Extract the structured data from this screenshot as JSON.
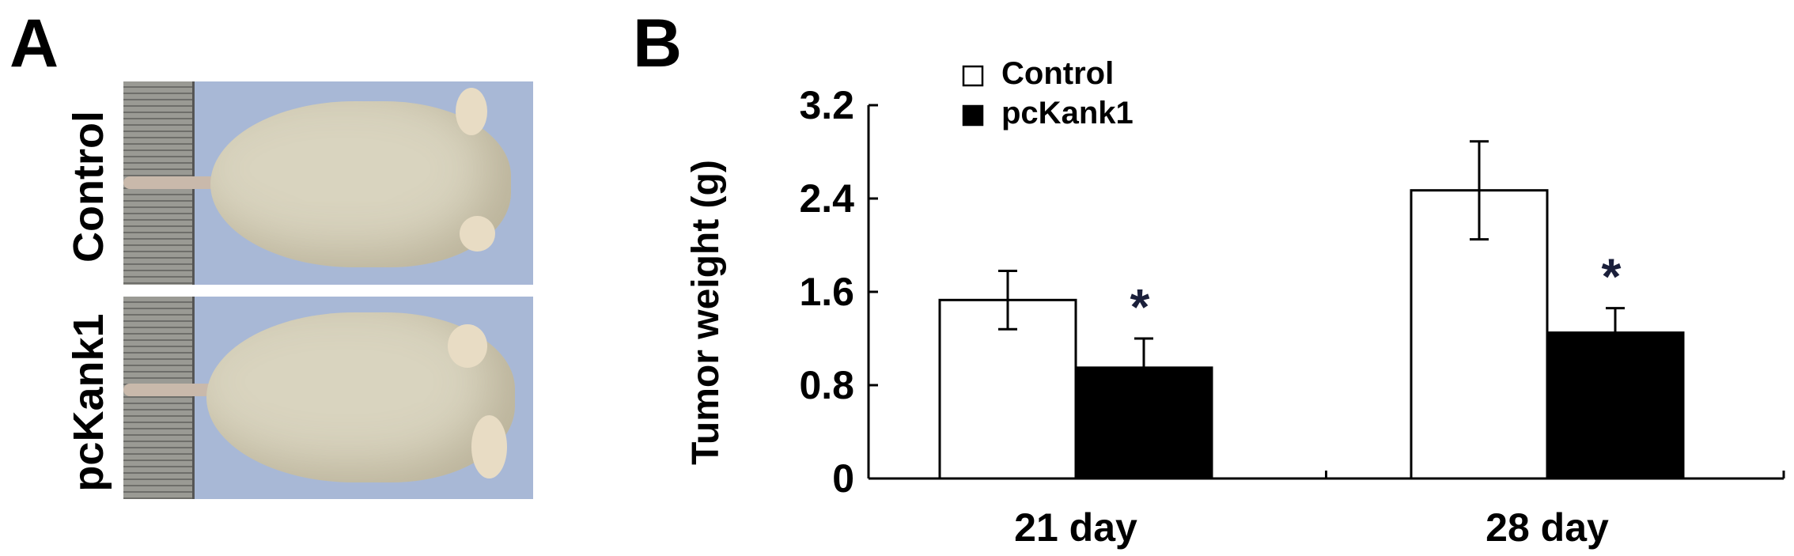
{
  "panels": {
    "a_label": "A",
    "b_label": "B"
  },
  "photos": {
    "top_label": "Control",
    "bottom_label": "pcKank1"
  },
  "colors": {
    "control_fill": "#ffffff",
    "pckank1_fill": "#000000",
    "photo_background": "#a8b8d6"
  },
  "chart_data": {
    "type": "bar",
    "categories": [
      "21 day",
      "28 day"
    ],
    "series": [
      {
        "name": "Control",
        "values": [
          1.53,
          2.47
        ],
        "errors": [
          0.25,
          0.42
        ],
        "color": "#ffffff"
      },
      {
        "name": "pcKank1",
        "values": [
          0.95,
          1.25
        ],
        "errors": [
          0.25,
          0.21
        ],
        "color": "#000000"
      }
    ],
    "significance": [
      {
        "category": "21 day",
        "series": "pcKank1",
        "marker": "*"
      },
      {
        "category": "28 day",
        "series": "pcKank1",
        "marker": "*"
      }
    ],
    "title": "",
    "xlabel": "",
    "ylabel": "Tumor weight (g)",
    "ylim": [
      0,
      3.2
    ],
    "yticks": [
      "0",
      "0.8",
      "1.6",
      "2.4",
      "3.2"
    ],
    "legend_position": "top-left",
    "grid": false
  }
}
